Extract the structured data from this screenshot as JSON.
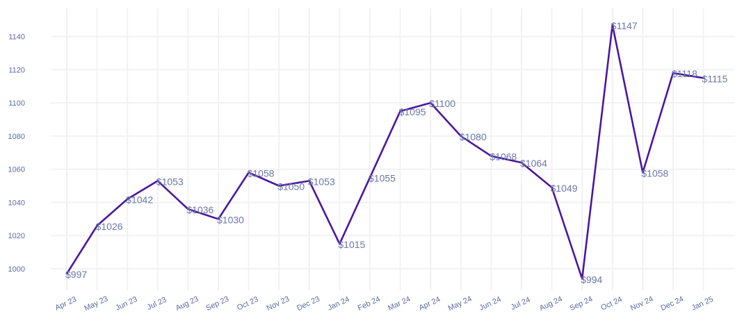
{
  "chart_data": {
    "type": "line",
    "title": "",
    "xlabel": "",
    "ylabel": "",
    "ylim": [
      987,
      1157
    ],
    "yticks": [
      1000,
      1020,
      1040,
      1060,
      1080,
      1100,
      1120,
      1140
    ],
    "grid": true,
    "legend": "none",
    "series_color": "#4a16a0",
    "categories": [
      "Apr 23",
      "May 23",
      "Jun 23",
      "Jul 23",
      "Aug 23",
      "Sep 23",
      "Oct 23",
      "Nov 23",
      "Dec 23",
      "Jan 24",
      "Feb 24",
      "Mar 24",
      "Apr 24",
      "May 24",
      "Jun 24",
      "Jul 24",
      "Aug 24",
      "Sep 24",
      "Oct 24",
      "Nov 24",
      "Dec 24",
      "Jan 25"
    ],
    "values": [
      997,
      1026,
      1042,
      1053,
      1036,
      1030,
      1058,
      1050,
      1053,
      1015,
      1055,
      1095,
      1100,
      1080,
      1068,
      1064,
      1049,
      994,
      1147,
      1058,
      1118,
      1115
    ],
    "data_labels": [
      "$997",
      "$1026",
      "$1042",
      "$1053",
      "$1036",
      "$1030",
      "$1058",
      "$1050",
      "$1053",
      "$1015",
      "$1055",
      "$1095",
      "$1100",
      "$1080",
      "$1068",
      "$1064",
      "$1049",
      "$994",
      "$1147",
      "$1058",
      "$1118",
      "$1115"
    ]
  }
}
